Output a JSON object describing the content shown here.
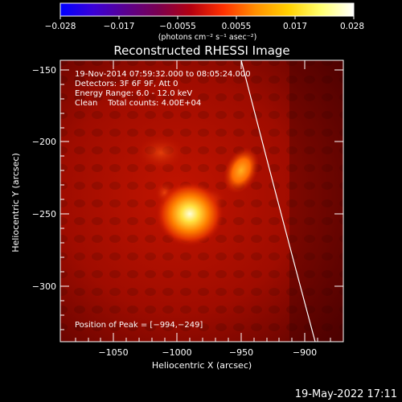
{
  "colorbar": {
    "ticks": [
      "−0.028",
      "−0.017",
      "−0.0055",
      "0.0055",
      "0.017",
      "0.028"
    ],
    "unit_label": "(photons cm⁻² s⁻¹ asec⁻²)",
    "colors": [
      "#0000ff",
      "#3a00d8",
      "#5a0090",
      "#7a0050",
      "#b40010",
      "#ff3000",
      "#ff9000",
      "#ffd000",
      "#ffff70",
      "#ffffff"
    ]
  },
  "image": {
    "title": "Reconstructed RHESSI Image",
    "info_lines": [
      "19-Nov-2014 07:59:32.000 to 08:05:24.000",
      "Detectors: 3F 6F 9F, Att 0",
      "Energy Range: 6.0 - 12.0 keV",
      "Clean    Total counts: 4.00E+04"
    ],
    "peak_label": "Position of Peak = [−994,−249]",
    "xlabel": "Heliocentric X (arcsec)",
    "ylabel": "Heliocentric Y (arcsec)",
    "x_ticks": [
      "−1050",
      "−1000",
      "−950",
      "−900"
    ],
    "y_ticks": [
      "−150",
      "−200",
      "−250",
      "−300"
    ],
    "peak_position": {
      "x": -994,
      "y": -249
    }
  },
  "footer": {
    "timestamp": "19-May-2022 17:11"
  }
}
